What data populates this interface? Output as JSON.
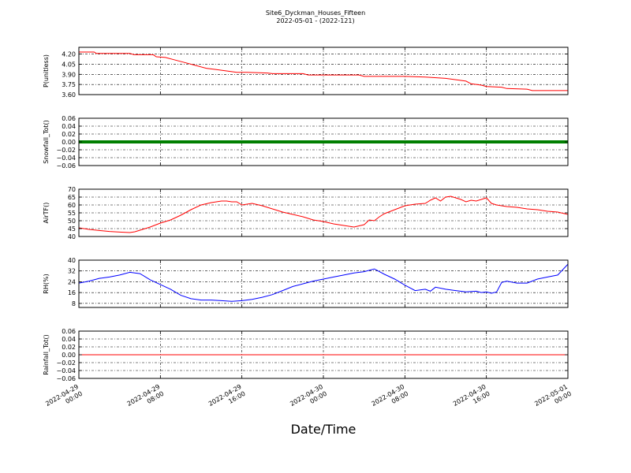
{
  "figure": {
    "title": "Site6_Dyckman_Houses_Fifteen",
    "subtitle": "2022-05-01 - (2022-121)",
    "xlabel": "Date/Time"
  },
  "chart_data": [
    {
      "type": "line",
      "ylabel": "P(unitless)",
      "ylim": [
        3.6,
        4.3
      ],
      "yticks": [
        "4.20",
        "4.05",
        "3.90",
        "3.75",
        "3.60"
      ],
      "ytick_values": [
        4.2,
        4.05,
        3.9,
        3.75,
        3.6
      ],
      "xlim": [
        0,
        48
      ],
      "color": "#ff0000",
      "grid": true,
      "series": [
        {
          "x": [
            0,
            1.5,
            1.7,
            5,
            5.4,
            7.3,
            7.6,
            8.5,
            9.5,
            10.5,
            11.5,
            12.5,
            13.5,
            14.5,
            15.5,
            16.5,
            18.5,
            19,
            22,
            22.5,
            27.5,
            28,
            32,
            34,
            36,
            37,
            38,
            38.5,
            39.5,
            40,
            41.5,
            42,
            44,
            44.5,
            48
          ],
          "y": [
            4.23,
            4.23,
            4.21,
            4.21,
            4.19,
            4.19,
            4.16,
            4.15,
            4.11,
            4.07,
            4.03,
            3.99,
            3.97,
            3.95,
            3.93,
            3.93,
            3.92,
            3.91,
            3.91,
            3.89,
            3.89,
            3.87,
            3.87,
            3.86,
            3.84,
            3.82,
            3.8,
            3.76,
            3.74,
            3.72,
            3.71,
            3.69,
            3.68,
            3.66,
            3.66
          ]
        }
      ]
    },
    {
      "type": "line",
      "ylabel": "Snowfall_Tot()",
      "ylim": [
        -0.06,
        0.06
      ],
      "yticks": [
        "0.06",
        "0.04",
        "0.02",
        "0.00",
        "−0.02",
        "−0.04",
        "−0.06"
      ],
      "ytick_values": [
        0.06,
        0.04,
        0.02,
        0.0,
        -0.02,
        -0.04,
        -0.06
      ],
      "xlim": [
        0,
        48
      ],
      "color": "#007f00",
      "style": "markers",
      "grid": true,
      "series": [
        {
          "x": [
            0,
            48
          ],
          "y": [
            0,
            0
          ]
        }
      ]
    },
    {
      "type": "line",
      "ylabel": "AirTF()",
      "ylim": [
        40,
        70
      ],
      "yticks": [
        "70",
        "65",
        "60",
        "55",
        "50",
        "45",
        "40"
      ],
      "ytick_values": [
        70,
        65,
        60,
        55,
        50,
        45,
        40
      ],
      "xlim": [
        0,
        48
      ],
      "color": "#ff0000",
      "grid": true,
      "series": [
        {
          "x": [
            0,
            1,
            2,
            3,
            4,
            5,
            5.5,
            6,
            7,
            8,
            9,
            10,
            11,
            12,
            13,
            14,
            14.5,
            15,
            15.5,
            16,
            17,
            18,
            19,
            19.5,
            20,
            21,
            22,
            23,
            24,
            25,
            26,
            27,
            28,
            28.5,
            29,
            29.5,
            30,
            31,
            32,
            33,
            34,
            34.5,
            35,
            35.5,
            36,
            36.5,
            37,
            37.5,
            38,
            38.5,
            39,
            39.5,
            40,
            40.5,
            41,
            42,
            43,
            44,
            45,
            46,
            47,
            48
          ],
          "y": [
            45.5,
            44.5,
            43.8,
            43.2,
            42.8,
            42.5,
            43,
            44,
            46,
            48.5,
            50.5,
            53.5,
            57,
            60,
            61.5,
            62.5,
            62.5,
            62,
            62,
            60,
            61,
            59.5,
            57.5,
            56.5,
            55.5,
            54,
            52.5,
            50.5,
            49.5,
            48,
            47,
            46,
            47.5,
            50.5,
            50,
            52.5,
            54.5,
            57,
            59.5,
            60.5,
            61,
            63,
            64.5,
            62.5,
            65,
            65.5,
            64.5,
            63.5,
            62,
            63,
            62.5,
            63.5,
            64.5,
            61,
            60,
            59,
            58.5,
            57.5,
            57,
            56,
            55.5,
            54
          ]
        }
      ]
    },
    {
      "type": "line",
      "ylabel": "RH(%)",
      "ylim": [
        5,
        40
      ],
      "yticks": [
        "40",
        "32",
        "24",
        "16",
        "8"
      ],
      "ytick_values": [
        40,
        32,
        24,
        16,
        8
      ],
      "xlim": [
        0,
        48
      ],
      "color": "#0000ff",
      "grid": true,
      "series": [
        {
          "x": [
            0,
            1,
            2,
            3,
            4,
            5,
            6,
            7,
            8,
            9,
            10,
            11,
            12,
            13,
            14,
            15,
            16,
            17,
            18,
            19,
            20,
            21,
            22,
            23,
            24,
            25,
            26,
            27,
            28,
            29,
            30,
            31,
            32,
            33,
            34,
            34.5,
            35,
            36,
            37,
            38,
            39,
            39.5,
            40,
            40.5,
            41,
            41.5,
            42,
            43,
            44,
            45,
            46,
            47,
            48
          ],
          "y": [
            23,
            24.5,
            26.5,
            27.5,
            29,
            31,
            30,
            25.5,
            22,
            18.5,
            14,
            11.5,
            10.5,
            10.5,
            10,
            9.5,
            10,
            11,
            12.5,
            14.5,
            17.5,
            20.5,
            22.5,
            24.5,
            26,
            27.5,
            29,
            30.5,
            31.5,
            33.5,
            29.5,
            26,
            21.5,
            17.5,
            18.5,
            17,
            20,
            18.5,
            17.5,
            16.5,
            17,
            16,
            16.5,
            15.5,
            16.5,
            23.5,
            24.5,
            23,
            23,
            26,
            27.5,
            29,
            37
          ]
        }
      ]
    },
    {
      "type": "line",
      "ylabel": "Rainfall_Tot()",
      "ylim": [
        -0.06,
        0.06
      ],
      "yticks": [
        "0.06",
        "0.04",
        "0.02",
        "0.00",
        "−0.02",
        "−0.04",
        "−0.06"
      ],
      "ytick_values": [
        0.06,
        0.04,
        0.02,
        0.0,
        -0.02,
        -0.04,
        -0.06
      ],
      "xlim": [
        0,
        48
      ],
      "color": "#ff0000",
      "grid": true,
      "series": [
        {
          "x": [
            0,
            48
          ],
          "y": [
            0,
            0
          ]
        }
      ],
      "xtick_labels": [
        [
          "2022-04-29",
          "00:00"
        ],
        [
          "2022-04-29",
          "08:00"
        ],
        [
          "2022-04-29",
          "16:00"
        ],
        [
          "2022-04-30",
          "00:00"
        ],
        [
          "2022-04-30",
          "08:00"
        ],
        [
          "2022-04-30",
          "16:00"
        ],
        [
          "2022-05-01",
          "00:00"
        ]
      ]
    }
  ]
}
